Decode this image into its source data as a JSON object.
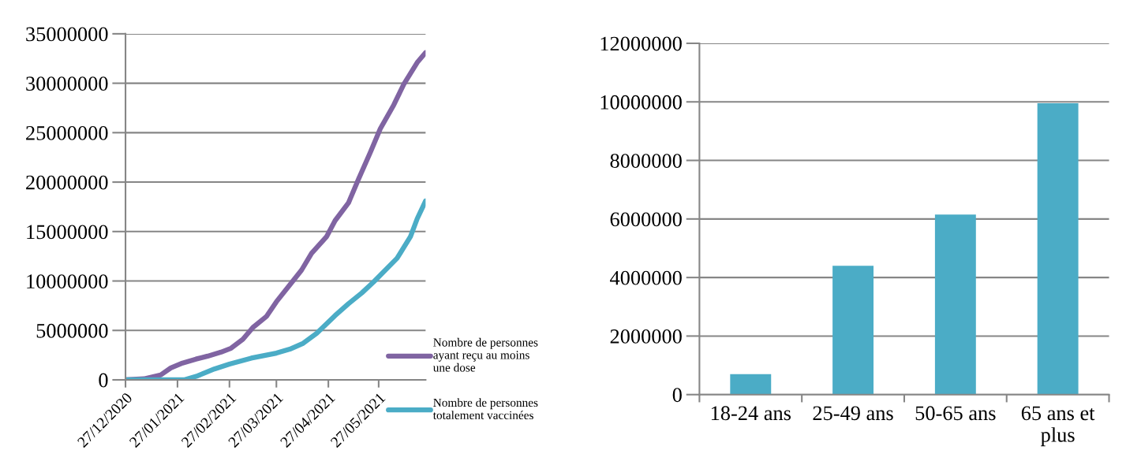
{
  "chart_data": [
    {
      "type": "line",
      "xlim": [
        "2020-12-27",
        "2021-06-24"
      ],
      "xticks": [
        {
          "value": "2020-12-27",
          "label": "27/12/2020"
        },
        {
          "value": "2021-01-27",
          "label": "27/01/2021"
        },
        {
          "value": "2021-02-27",
          "label": "27/02/2021"
        },
        {
          "value": "2021-03-27",
          "label": "27/03/2021"
        },
        {
          "value": "2021-04-27",
          "label": "27/04/2021"
        },
        {
          "value": "2021-05-27",
          "label": "27/05/2021"
        }
      ],
      "ylim": [
        0,
        35000000
      ],
      "yticks": [
        0,
        5000000,
        10000000,
        15000000,
        20000000,
        25000000,
        30000000,
        35000000
      ],
      "grid": "y",
      "legend": "bottom right",
      "series": [
        {
          "name": "Nombre de personnes ayant reçu au moins une dose",
          "color": "#8064a2",
          "x": [
            "2020-12-27",
            "2021-01-07",
            "2021-01-17",
            "2021-01-23",
            "2021-01-30",
            "2021-02-07",
            "2021-02-14",
            "2021-02-22",
            "2021-02-28",
            "2021-03-07",
            "2021-03-13",
            "2021-03-21",
            "2021-03-27",
            "2021-04-04",
            "2021-04-11",
            "2021-04-17",
            "2021-04-26",
            "2021-05-01",
            "2021-05-09",
            "2021-05-15",
            "2021-05-22",
            "2021-05-28",
            "2021-06-05",
            "2021-06-11",
            "2021-06-19",
            "2021-06-24"
          ],
          "values": [
            0,
            100000,
            500000,
            1200000,
            1700000,
            2100000,
            2400000,
            2800000,
            3200000,
            4100000,
            5300000,
            6400000,
            7900000,
            9600000,
            11100000,
            12800000,
            14500000,
            16100000,
            17900000,
            20300000,
            23000000,
            25400000,
            27800000,
            29900000,
            32100000,
            33100000
          ]
        },
        {
          "name": "Nombre de personnes totalement vaccinées",
          "color": "#4bacc6",
          "x": [
            "2020-12-27",
            "2021-01-31",
            "2021-02-08",
            "2021-02-18",
            "2021-02-27",
            "2021-03-12",
            "2021-03-27",
            "2021-04-04",
            "2021-04-12",
            "2021-04-20",
            "2021-05-01",
            "2021-05-09",
            "2021-05-17",
            "2021-05-24",
            "2021-06-07",
            "2021-06-15",
            "2021-06-19",
            "2021-06-24"
          ],
          "values": [
            0,
            0,
            400000,
            1100000,
            1600000,
            2200000,
            2700000,
            3100000,
            3700000,
            4700000,
            6500000,
            7700000,
            8800000,
            9900000,
            12300000,
            14500000,
            16300000,
            18100000
          ]
        }
      ]
    },
    {
      "type": "bar",
      "categories": [
        "18-24 ans",
        "25-49 ans",
        "50-65 ans",
        "65 ans et plus"
      ],
      "values": [
        700000,
        4400000,
        6150000,
        9950000
      ],
      "color": "#4bacc6",
      "ylim": [
        0,
        12000000
      ],
      "yticks": [
        0,
        2000000,
        4000000,
        6000000,
        8000000,
        10000000,
        12000000
      ],
      "grid": "y"
    }
  ]
}
